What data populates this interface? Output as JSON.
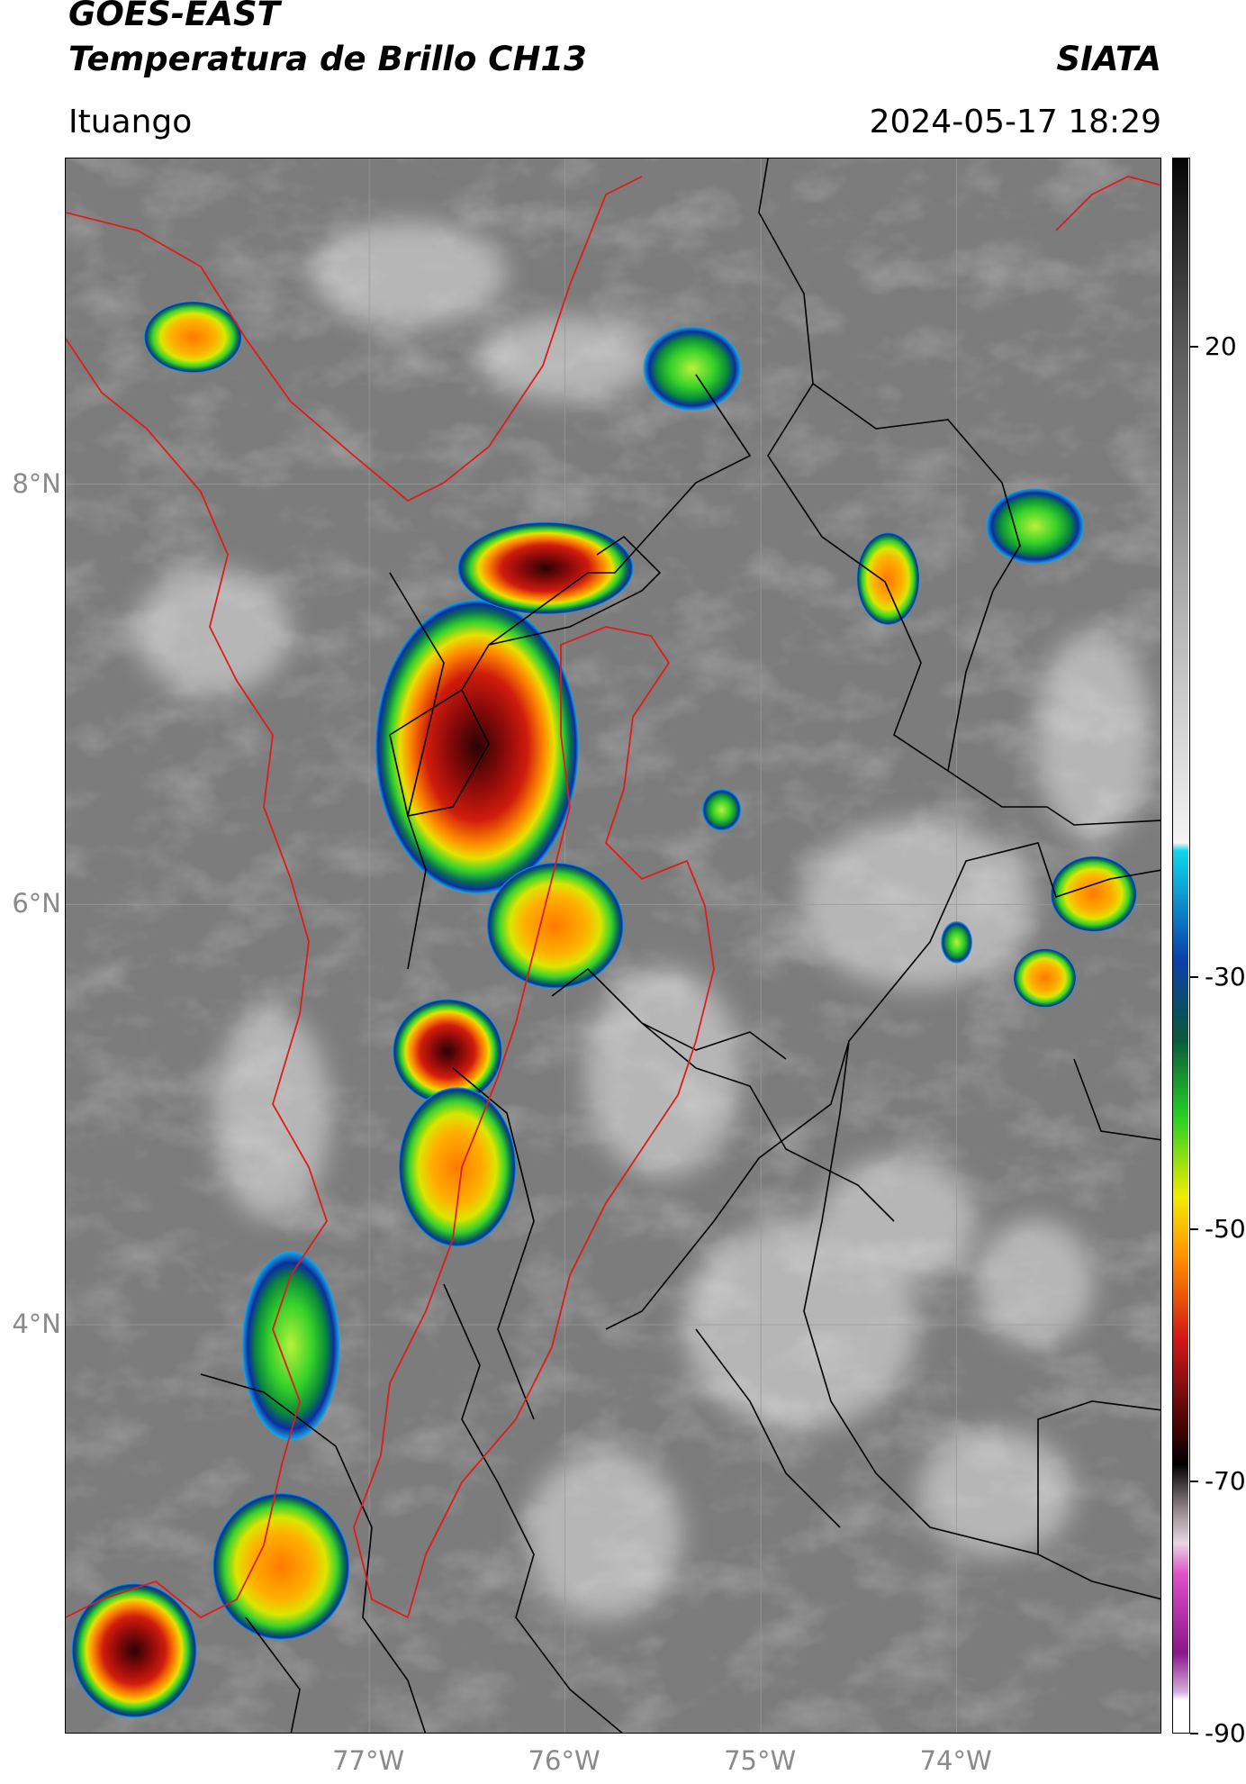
{
  "header": {
    "satellite": "GOES-EAST",
    "product": "Temperatura de Brillo CH13",
    "agency": "SIATA",
    "location": "Ituango",
    "datetime": "2024-05-17 18:29"
  },
  "map": {
    "lat_labels": [
      {
        "value": 8,
        "label": "8°N"
      },
      {
        "value": 6,
        "label": "6°N"
      },
      {
        "value": 4,
        "label": "4°N"
      }
    ],
    "lon_labels": [
      {
        "value": -77,
        "label": "77°W"
      },
      {
        "value": -76,
        "label": "76°W"
      },
      {
        "value": -75,
        "label": "75°W"
      },
      {
        "value": -74,
        "label": "74°W"
      }
    ],
    "extent": {
      "lon_min": -78.55,
      "lon_max": -72.95,
      "lat_min": 2.05,
      "lat_max": 9.55
    },
    "colors": {
      "background": "#7c7c7c",
      "borders": "#000000",
      "highlight": "#e01b1b"
    },
    "cloud_systems": [
      {
        "lon": -76.45,
        "lat": 6.75,
        "rx": 0.52,
        "ry": 0.7,
        "min_temp": -72
      },
      {
        "lon": -76.1,
        "lat": 7.6,
        "rx": 0.45,
        "ry": 0.22,
        "min_temp": -70
      },
      {
        "lon": -76.05,
        "lat": 5.9,
        "rx": 0.35,
        "ry": 0.3,
        "min_temp": -55
      },
      {
        "lon": -76.6,
        "lat": 5.3,
        "rx": 0.28,
        "ry": 0.25,
        "min_temp": -72
      },
      {
        "lon": -76.55,
        "lat": 4.75,
        "rx": 0.3,
        "ry": 0.38,
        "min_temp": -52
      },
      {
        "lon": -77.45,
        "lat": 2.85,
        "rx": 0.35,
        "ry": 0.35,
        "min_temp": -52
      },
      {
        "lon": -77.4,
        "lat": 3.9,
        "rx": 0.25,
        "ry": 0.45,
        "min_temp": -42
      },
      {
        "lon": -78.2,
        "lat": 2.45,
        "rx": 0.32,
        "ry": 0.32,
        "min_temp": -75
      },
      {
        "lon": -77.9,
        "lat": 8.7,
        "rx": 0.25,
        "ry": 0.17,
        "min_temp": -58
      },
      {
        "lon": -75.35,
        "lat": 8.55,
        "rx": 0.25,
        "ry": 0.2,
        "min_temp": -42
      },
      {
        "lon": -74.35,
        "lat": 7.55,
        "rx": 0.16,
        "ry": 0.22,
        "min_temp": -58
      },
      {
        "lon": -73.6,
        "lat": 7.8,
        "rx": 0.25,
        "ry": 0.18,
        "min_temp": -45
      },
      {
        "lon": -73.3,
        "lat": 6.05,
        "rx": 0.22,
        "ry": 0.18,
        "min_temp": -57
      },
      {
        "lon": -73.55,
        "lat": 5.65,
        "rx": 0.16,
        "ry": 0.14,
        "min_temp": -52
      },
      {
        "lon": -74.0,
        "lat": 5.82,
        "rx": 0.08,
        "ry": 0.1,
        "min_temp": -45
      },
      {
        "lon": -75.2,
        "lat": 6.45,
        "rx": 0.1,
        "ry": 0.1,
        "min_temp": -38
      }
    ]
  },
  "colorbar": {
    "min": -90,
    "max": 35,
    "ticks": [
      {
        "value": 20,
        "label": "20"
      },
      {
        "value": -30,
        "label": "-30"
      },
      {
        "value": -50,
        "label": "-50"
      },
      {
        "value": -70,
        "label": "-70"
      },
      {
        "value": -90,
        "label": "-90"
      }
    ]
  }
}
